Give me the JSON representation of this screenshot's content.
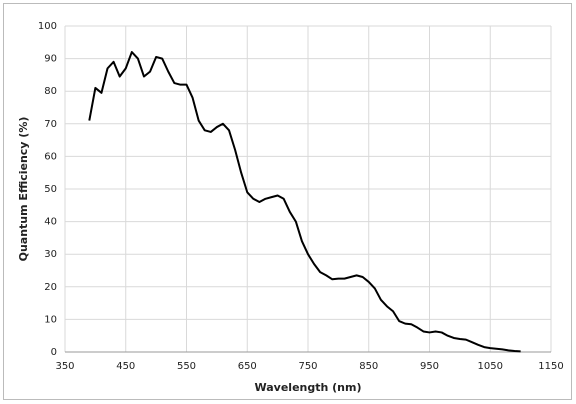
{
  "chart_data": {
    "type": "line",
    "x_label": "Wavelength (nm)",
    "y_label": "Quantum Efficiency (%)",
    "x": [
      390,
      400,
      410,
      420,
      430,
      440,
      450,
      460,
      470,
      480,
      490,
      500,
      510,
      520,
      530,
      540,
      550,
      560,
      570,
      580,
      590,
      600,
      610,
      620,
      630,
      640,
      650,
      660,
      670,
      680,
      690,
      700,
      710,
      720,
      730,
      740,
      750,
      760,
      770,
      780,
      790,
      800,
      810,
      820,
      830,
      840,
      850,
      860,
      870,
      880,
      890,
      900,
      910,
      920,
      930,
      940,
      950,
      960,
      970,
      980,
      990,
      1000,
      1010,
      1020,
      1030,
      1040,
      1050,
      1060,
      1070,
      1080,
      1090,
      1100
    ],
    "values": [
      71,
      81,
      79.5,
      87,
      89,
      84.5,
      87,
      92,
      90,
      84.5,
      86,
      90.5,
      90,
      86,
      82.5,
      82,
      82,
      78,
      71,
      68,
      67.5,
      69,
      70,
      68,
      62,
      55,
      49,
      47,
      46,
      47,
      47.5,
      48,
      47,
      43,
      40,
      34,
      30,
      27,
      24.5,
      23.5,
      22.3,
      22.5,
      22.5,
      23,
      23.5,
      23,
      21.5,
      19.5,
      16,
      14,
      12.5,
      9.5,
      8.7,
      8.5,
      7.5,
      6.3,
      6,
      6.3,
      6,
      5,
      4.3,
      4,
      3.8,
      3,
      2.2,
      1.5,
      1.2,
      1,
      0.8,
      0.5,
      0.3,
      0.2
    ],
    "color": "#000000",
    "xlim": [
      350,
      1150
    ],
    "xticks": [
      350,
      450,
      550,
      650,
      750,
      850,
      950,
      1050,
      1150
    ],
    "ylim": [
      0,
      100
    ],
    "yticks": [
      0,
      10,
      20,
      30,
      40,
      50,
      60,
      70,
      80,
      90,
      100
    ],
    "grid": true
  }
}
